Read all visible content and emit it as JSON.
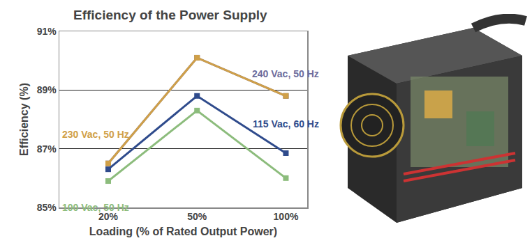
{
  "chart_data": {
    "type": "line",
    "title": "Efficiency of the Power Supply",
    "x_label": "Loading (% of Rated Output Power)",
    "y_label": "Efficiency (%)",
    "categories": [
      "20%",
      "50%",
      "100%"
    ],
    "series": [
      {
        "name": "240 Vac, 50 Hz",
        "color": "#6c6c9c",
        "values": [
          86.5,
          90.1,
          88.8
        ]
      },
      {
        "name": "230 Vac, 50 Hz",
        "color": "#d0a048",
        "values": [
          86.5,
          90.1,
          88.8
        ]
      },
      {
        "name": "115 Vac, 60 Hz",
        "color": "#2f4b8c",
        "values": [
          86.3,
          88.8,
          86.85
        ]
      },
      {
        "name": "100 Vac, 50 Hz",
        "color": "#8cbc7c",
        "values": [
          85.9,
          88.3,
          86.0
        ]
      }
    ],
    "ylim": [
      85,
      91
    ],
    "yticks": [
      {
        "value": 85,
        "label": "85%"
      },
      {
        "value": 87,
        "label": "87%"
      },
      {
        "value": 89,
        "label": "89%"
      },
      {
        "value": 91,
        "label": "91%"
      }
    ],
    "grid": true,
    "marker": "square",
    "legend": false
  }
}
